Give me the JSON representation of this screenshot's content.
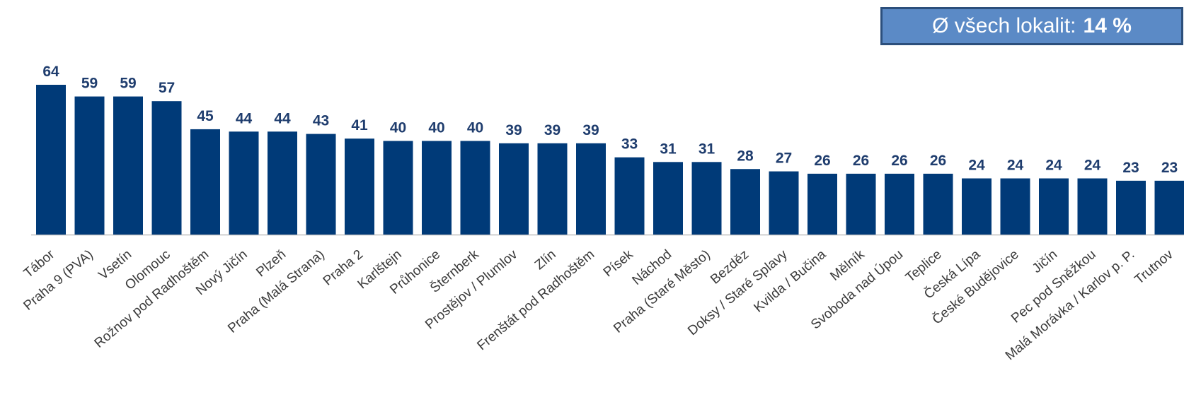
{
  "average_badge": {
    "label": "Ø všech lokalit:",
    "value": "14 %"
  },
  "colors": {
    "bar": "#003a78",
    "value_label": "#1f3d6e",
    "category_label": "#3a3a3a",
    "axis": "#bfbfbf",
    "badge_bg": "#5b8ac6",
    "badge_border": "#2c4f7c"
  },
  "chart_data": {
    "type": "bar",
    "title": "",
    "xlabel": "",
    "ylabel": "",
    "ylim": [
      0,
      64
    ],
    "grid": false,
    "categories": [
      "Tábor",
      "Praha 9 (PVA)",
      "Vsetín",
      "Olomouc",
      "Rožnov pod Radhoštěm",
      "Nový Jičín",
      "Plzeň",
      "Praha (Malá Strana)",
      "Praha 2",
      "Karlštejn",
      "Průhonice",
      "Šternberk",
      "Prostějov / Plumlov",
      "Zlín",
      "Frenštát pod Radhoštěm",
      "Písek",
      "Náchod",
      "Praha (Staré Město)",
      "Bezděz",
      "Doksy / Staré Splavy",
      "Kvilda / Bučina",
      "Mělník",
      "Svoboda nad Úpou",
      "Teplice",
      "Česká Lípa",
      "České Budějovice",
      "Jičín",
      "Pec pod Sněžkou",
      "Malá Morávka / Karlov p. P.",
      "Trutnov"
    ],
    "values": [
      64,
      59,
      59,
      57,
      45,
      44,
      44,
      43,
      41,
      40,
      40,
      40,
      39,
      39,
      39,
      33,
      31,
      31,
      28,
      27,
      26,
      26,
      26,
      26,
      24,
      24,
      24,
      24,
      23,
      23
    ]
  }
}
